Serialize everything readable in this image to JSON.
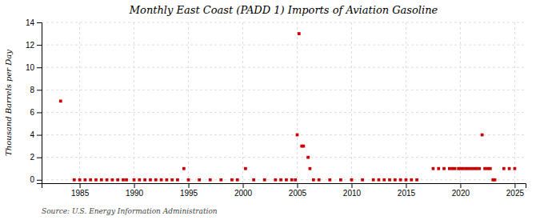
{
  "chart_data": {
    "type": "scatter",
    "title": "Monthly East Coast (PADD 1) Imports of Aviation Gasoline",
    "ylabel": "Thousand Barrels per Day",
    "annotations": [
      "Source: U.S. Energy Information Administration"
    ],
    "color": "#cc0000",
    "marker": "square",
    "grid": true,
    "xlim": [
      1981.5,
      2026.0
    ],
    "ylim": [
      -0.3,
      14
    ],
    "xticks": [
      1985,
      1990,
      1995,
      2000,
      2005,
      2010,
      2015,
      2020,
      2025
    ],
    "yticks": [
      0,
      2,
      4,
      6,
      8,
      10,
      12,
      14
    ],
    "x": [
      1983.25,
      1984.5,
      1985.0,
      1985.5,
      1986.0,
      1986.5,
      1987.0,
      1987.5,
      1988.0,
      1988.5,
      1989.0,
      1989.3,
      1990.0,
      1990.5,
      1991.0,
      1991.5,
      1992.0,
      1992.5,
      1993.0,
      1993.5,
      1994.0,
      1994.58,
      1995.0,
      1996.0,
      1997.0,
      1998.0,
      1999.0,
      1999.5,
      2000.25,
      2001.0,
      2002.0,
      2003.0,
      2003.5,
      2004.0,
      2004.5,
      2004.83,
      2005.0,
      2005.17,
      2005.42,
      2005.58,
      2006.0,
      2006.17,
      2006.5,
      2007.0,
      2008.0,
      2009.0,
      2010.0,
      2011.0,
      2012.0,
      2012.5,
      2013.0,
      2013.5,
      2014.0,
      2014.5,
      2015.0,
      2015.5,
      2016.0,
      2017.5,
      2018.0,
      2018.5,
      2019.0,
      2019.25,
      2019.5,
      2019.83,
      2020.0,
      2020.25,
      2020.5,
      2020.75,
      2021.0,
      2021.25,
      2021.5,
      2021.75,
      2022.0,
      2022.25,
      2022.5,
      2022.75,
      2023.0,
      2023.17,
      2024.0,
      2024.5,
      2025.0
    ],
    "values": [
      7.0,
      0.0,
      0.0,
      0.0,
      0.0,
      0.0,
      0.0,
      0.0,
      0.0,
      0.0,
      0.0,
      0.0,
      0.0,
      0.0,
      0.0,
      0.0,
      0.0,
      0.0,
      0.0,
      0.0,
      0.0,
      1.0,
      0.0,
      0.0,
      0.0,
      0.0,
      0.0,
      0.0,
      1.0,
      0.0,
      0.0,
      0.0,
      0.0,
      0.0,
      0.0,
      0.0,
      4.0,
      13.0,
      3.0,
      3.0,
      2.0,
      1.0,
      0.0,
      0.0,
      0.0,
      0.0,
      0.0,
      0.0,
      0.0,
      0.0,
      0.0,
      0.0,
      0.0,
      0.0,
      0.0,
      0.0,
      0.0,
      1.0,
      1.0,
      1.0,
      1.0,
      1.0,
      1.0,
      1.0,
      1.0,
      1.0,
      1.0,
      1.0,
      1.0,
      1.0,
      1.0,
      1.0,
      4.0,
      1.0,
      1.0,
      1.0,
      0.0,
      0.0,
      1.0,
      1.0,
      1.0
    ]
  }
}
